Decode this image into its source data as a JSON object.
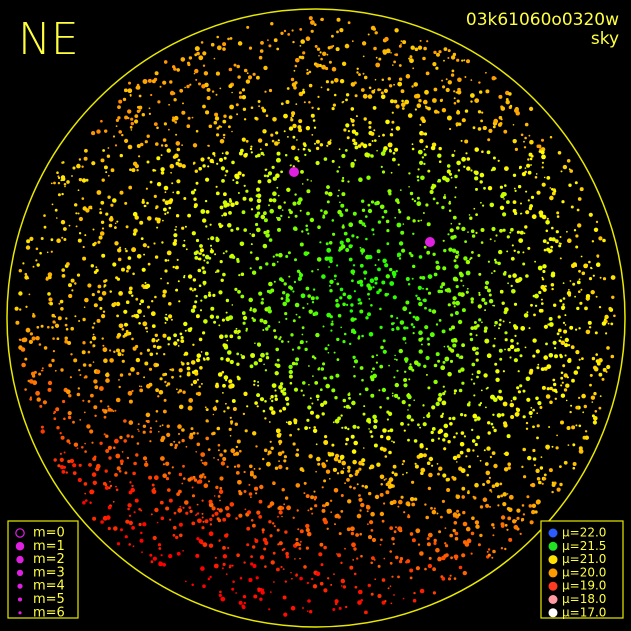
{
  "header": {
    "direction": "NE",
    "frame_id": "03k61060o0320w",
    "mode": "sky"
  },
  "magnitude_legend": [
    "m=0",
    "m=1",
    "m=2",
    "m=3",
    "m=4",
    "m=5",
    "m=6"
  ],
  "brightness_legend": [
    {
      "label": "μ=22.0",
      "color": "#2a5cff"
    },
    {
      "label": "μ=21.5",
      "color": "#22e022"
    },
    {
      "label": "μ=21.0",
      "color": "#ffe000"
    },
    {
      "label": "μ=20.0",
      "color": "#ff9a00"
    },
    {
      "label": "μ=19.0",
      "color": "#ff3a20"
    },
    {
      "label": "μ=18.0",
      "color": "#ff9aa0"
    },
    {
      "label": "μ=17.0",
      "color": "#ffffff"
    }
  ]
}
